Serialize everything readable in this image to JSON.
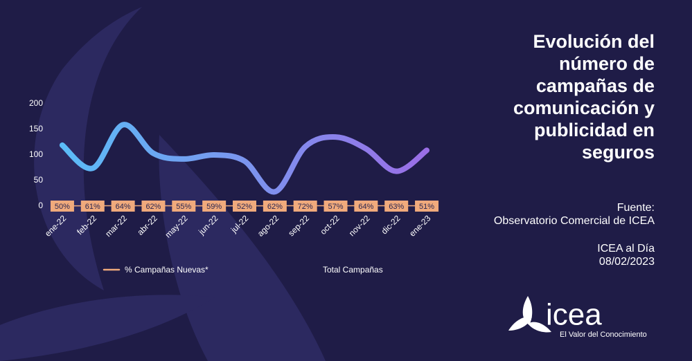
{
  "chart_data": {
    "type": "line",
    "title": "Evolución del número de campañas de comunicación y publicidad en seguros",
    "categories": [
      "ene-22",
      "feb-22",
      "mar-22",
      "abr-22",
      "may-22",
      "jun-22",
      "jul-22",
      "ago-22",
      "sep-22",
      "oct-22",
      "nov-22",
      "dic-22",
      "ene-23"
    ],
    "series": [
      {
        "name": "% Campañas Nuevas*",
        "color": "#f0aa7c",
        "values": [
          0.5,
          0.61,
          0.64,
          0.62,
          0.55,
          0.59,
          0.52,
          0.62,
          0.72,
          0.57,
          0.64,
          0.63,
          0.51
        ],
        "value_labels": [
          "50%",
          "61%",
          "64%",
          "62%",
          "55%",
          "59%",
          "52%",
          "62%",
          "72%",
          "57%",
          "64%",
          "63%",
          "51%"
        ]
      },
      {
        "name": "Total Campañas",
        "color": "#7a8cf0",
        "values": [
          119,
          74,
          159,
          103,
          92,
          100,
          88,
          28,
          116,
          135,
          112,
          68,
          109
        ]
      }
    ],
    "ylim": [
      0,
      200
    ],
    "yticks": [
      0,
      50,
      100,
      150,
      200
    ],
    "grid": false
  },
  "page": {
    "source_label": "Fuente:",
    "source": "Observatorio Comercial de ICEA",
    "publication": "ICEA al Día",
    "date": "08/02/2023",
    "logo": "icea",
    "tagline": "El Valor del Conocimiento"
  }
}
